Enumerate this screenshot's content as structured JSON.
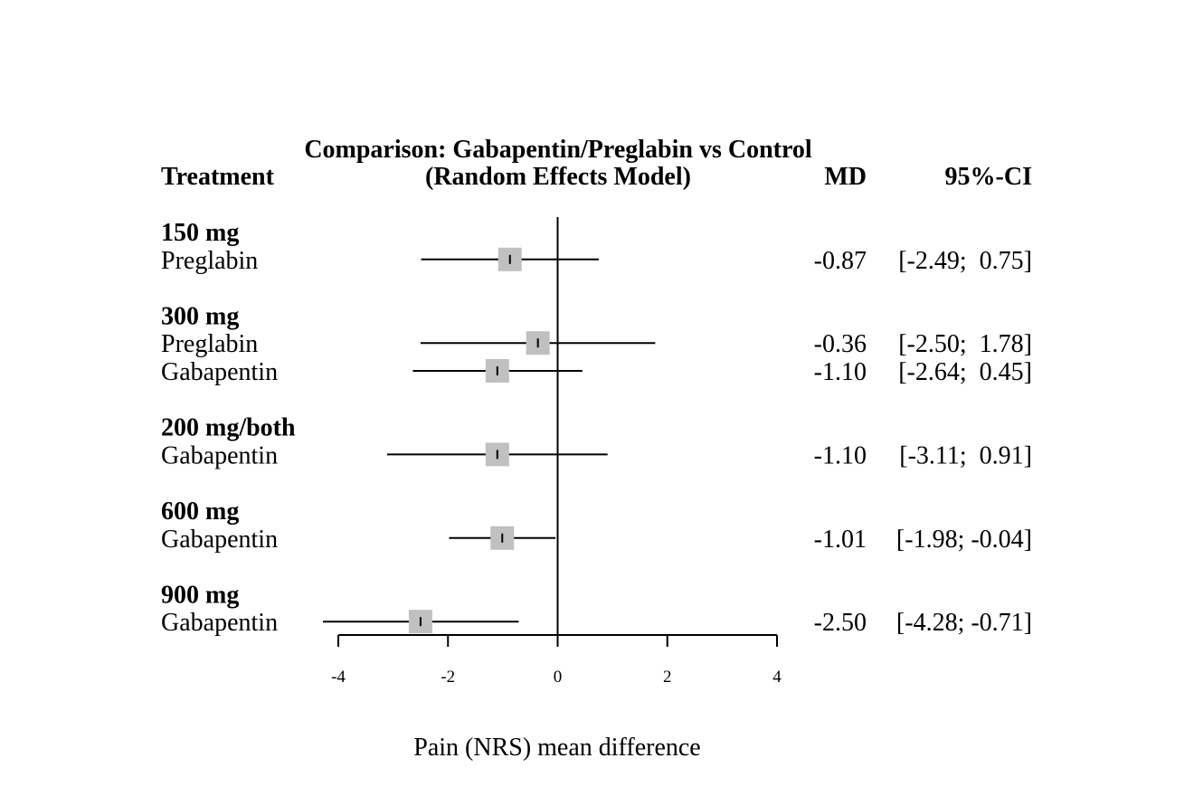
{
  "chart_data": {
    "type": "forest",
    "title_line1": "Comparison: Gabapentin/Preglabin vs Control",
    "title_line2": "(Random Effects Model)",
    "columns": {
      "treatment": "Treatment",
      "md": "MD",
      "ci": "95%-CI"
    },
    "xlabel": "Pain (NRS) mean difference",
    "xlim": [
      -4,
      4
    ],
    "ticks": [
      {
        "value": -4,
        "label": "-4"
      },
      {
        "value": -2,
        "label": "-2"
      },
      {
        "value": 0,
        "label": "0"
      },
      {
        "value": 2,
        "label": "2"
      },
      {
        "value": 4,
        "label": "4"
      }
    ],
    "reference_line": 0,
    "groups": [
      {
        "name": "150 mg",
        "rows": [
          {
            "label": "Preglabin",
            "md": -0.87,
            "lower": -2.49,
            "upper": 0.75,
            "md_text": "-0.87",
            "ci_text": "[-2.49;  0.75]"
          }
        ]
      },
      {
        "name": "300 mg",
        "rows": [
          {
            "label": "Preglabin",
            "md": -0.36,
            "lower": -2.5,
            "upper": 1.78,
            "md_text": "-0.36",
            "ci_text": "[-2.50;  1.78]"
          },
          {
            "label": "Gabapentin",
            "md": -1.1,
            "lower": -2.64,
            "upper": 0.45,
            "md_text": "-1.10",
            "ci_text": "[-2.64;  0.45]"
          }
        ]
      },
      {
        "name": "200 mg/both",
        "rows": [
          {
            "label": "Gabapentin",
            "md": -1.1,
            "lower": -3.11,
            "upper": 0.91,
            "md_text": "-1.10",
            "ci_text": "[-3.11;  0.91]"
          }
        ]
      },
      {
        "name": "600 mg",
        "rows": [
          {
            "label": "Gabapentin",
            "md": -1.01,
            "lower": -1.98,
            "upper": -0.04,
            "md_text": "-1.01",
            "ci_text": "[-1.98; -0.04]"
          }
        ]
      },
      {
        "name": "900 mg",
        "rows": [
          {
            "label": "Gabapentin",
            "md": -2.5,
            "lower": -4.28,
            "upper": -0.71,
            "md_text": "-2.50",
            "ci_text": "[-4.28; -0.71]"
          }
        ]
      }
    ],
    "colors": {
      "box": "#c0c0c0",
      "line": "#000000"
    }
  }
}
